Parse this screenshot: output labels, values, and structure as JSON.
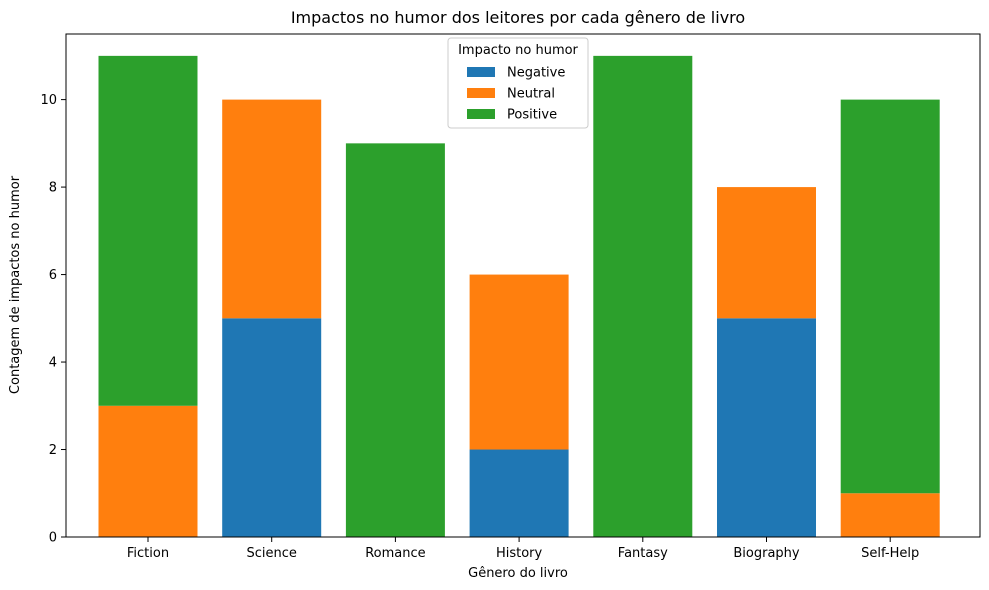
{
  "chart_data": {
    "type": "bar",
    "stacked": true,
    "title": "Impactos no humor dos leitores por cada gênero de livro",
    "xlabel": "Gênero do livro",
    "ylabel": "Contagem de impactos no humor",
    "categories": [
      "Fiction",
      "Science",
      "Romance",
      "History",
      "Fantasy",
      "Biography",
      "Self-Help"
    ],
    "series": [
      {
        "name": "Negative",
        "color": "#1f77b4",
        "values": [
          0,
          5,
          0,
          2,
          0,
          5,
          0
        ]
      },
      {
        "name": "Neutral",
        "color": "#ff7f0e",
        "values": [
          3,
          5,
          0,
          4,
          0,
          3,
          1
        ]
      },
      {
        "name": "Positive",
        "color": "#2ca02c",
        "values": [
          8,
          0,
          9,
          0,
          11,
          0,
          9
        ]
      }
    ],
    "ylim": [
      0,
      11.5
    ],
    "yticks": [
      0,
      2,
      4,
      6,
      8,
      10
    ],
    "grid": false,
    "legend": {
      "title": "Impacto no humor",
      "position": "top-center"
    }
  }
}
